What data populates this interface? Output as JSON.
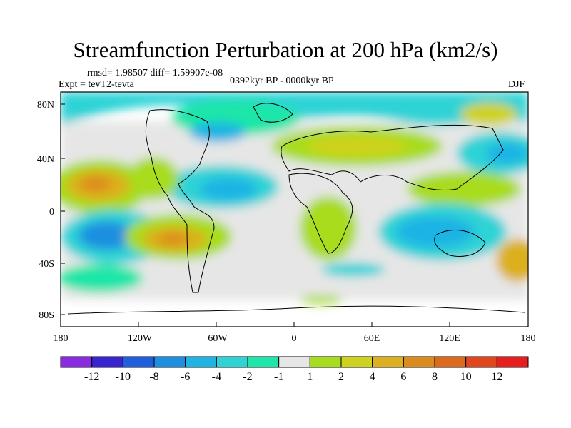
{
  "title": "Streamfunction Perturbation at 200 hPa (km2/s)",
  "stats_text": "rmsd= 1.98507 diff= 1.59907e-08",
  "experiment_text": "Expt = tevT2-tevta",
  "period_text": "0392kyr BP - 0000kyr BP",
  "season_text": "DJF",
  "lon_ticks": [
    "180",
    "120W",
    "60W",
    "0",
    "60E",
    "120E",
    "180"
  ],
  "lat_ticks": [
    "80N",
    "40N",
    "0",
    "40S",
    "80S"
  ],
  "colorbar": {
    "labels": [
      "-12",
      "-10",
      "-8",
      "-6",
      "-4",
      "-2",
      "-1",
      "1",
      "2",
      "4",
      "6",
      "8",
      "10",
      "12"
    ],
    "colors": [
      "#8a2be2",
      "#3a24cf",
      "#1f5fdc",
      "#1e8fe0",
      "#1fb4e4",
      "#2fd3d6",
      "#1ee6a8",
      "#e6e6e6",
      "#a8dc1e",
      "#cfd21e",
      "#dcb01e",
      "#dc8c1e",
      "#dc6a1e",
      "#e2461e",
      "#e61e1e"
    ]
  }
}
